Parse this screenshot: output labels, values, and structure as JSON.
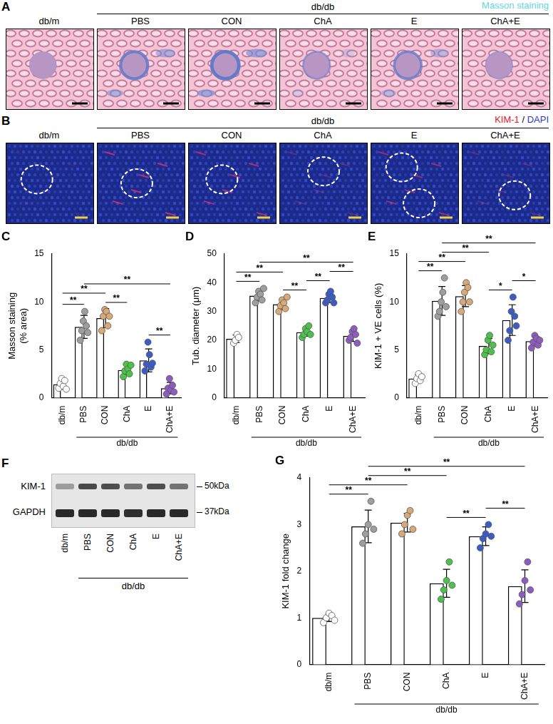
{
  "image_panels": [
    {
      "panel": "A",
      "title": [
        {
          "text": "Masson staining",
          "color": "#5fd6e0"
        }
      ],
      "lanes": [
        "db/m",
        "PBS",
        "CON",
        "ChA",
        "E",
        "ChA+E"
      ],
      "group": {
        "label": "db/db",
        "from": "PBS",
        "to": "ChA+E"
      }
    },
    {
      "panel": "B",
      "title": [
        {
          "text": "KIM-1",
          "color": "#e0202a"
        },
        {
          "text": " / ",
          "color": "#000000"
        },
        {
          "text": "DAPI",
          "color": "#2a3ac8"
        }
      ],
      "lanes": [
        "db/m",
        "PBS",
        "CON",
        "ChA",
        "E",
        "ChA+E"
      ],
      "group": {
        "label": "db/db",
        "from": "PBS",
        "to": "ChA+E"
      }
    }
  ],
  "blot": {
    "panel": "F",
    "lanes": [
      "db/m",
      "PBS",
      "CON",
      "ChA",
      "E",
      "ChA+E"
    ],
    "group": {
      "label": "db/db",
      "from": "PBS",
      "to": "ChA+E"
    },
    "rows": [
      {
        "label": "KIM-1",
        "marker": "50kDa"
      },
      {
        "label": "GAPDH",
        "marker": "37kDa"
      }
    ]
  },
  "chart_data": [
    {
      "type": "bar",
      "panel": "C",
      "y_label": [
        "Masson staining",
        "(% area)"
      ],
      "categories": [
        "db/m",
        "PBS",
        "CON",
        "ChA",
        "E",
        "ChA+E"
      ],
      "values": [
        1.4,
        7.4,
        8.3,
        2.9,
        3.9,
        1.0
      ],
      "errors": [
        0.5,
        1.2,
        1.0,
        0.5,
        1.2,
        0.6
      ],
      "points": [
        [
          1.0,
          1.5,
          2.0,
          1.2,
          1.8,
          0.9
        ],
        [
          6.0,
          7.0,
          8.0,
          9.0,
          7.5,
          6.8
        ],
        [
          7.0,
          8.5,
          9.2,
          9.0,
          7.5,
          8.5
        ],
        [
          2.2,
          2.8,
          3.5,
          3.0,
          2.5,
          3.4
        ],
        [
          2.8,
          3.5,
          5.8,
          4.5,
          3.2,
          3.6
        ],
        [
          0.4,
          1.0,
          2.0,
          0.8,
          1.3,
          0.6
        ]
      ],
      "colors": [
        "#ffffff",
        "#9e9e9e",
        "#d9a877",
        "#4cc24a",
        "#3a5cc4",
        "#8e5cc0"
      ],
      "ylim": [
        0,
        15
      ],
      "yticks": [
        0,
        5,
        10,
        15
      ],
      "group": {
        "label": "db/db",
        "from": "PBS",
        "to": "ChA+E"
      },
      "annotations": [
        {
          "from": "db/m",
          "to": "PBS",
          "label": "**"
        },
        {
          "from": "db/m",
          "to": "CON",
          "label": "**"
        },
        {
          "from": "PBS",
          "to": "ChA+E",
          "label": "**"
        },
        {
          "from": "CON",
          "to": "ChA",
          "label": "**"
        },
        {
          "from": "E",
          "to": "ChA+E",
          "label": "**"
        }
      ]
    },
    {
      "type": "bar",
      "panel": "D",
      "y_label": "Tub. diameter (μm)",
      "categories": [
        "db/m",
        "PBS",
        "CON",
        "ChA",
        "E",
        "ChA+E"
      ],
      "values": [
        20.5,
        35.5,
        32.5,
        22.8,
        34.7,
        21.5
      ],
      "errors": [
        1.3,
        1.8,
        1.8,
        1.4,
        1.6,
        1.9
      ],
      "points": [
        [
          19,
          20,
          22,
          21
        ],
        [
          33,
          35,
          37,
          36,
          34,
          38
        ],
        [
          30,
          32,
          34,
          33,
          31,
          35
        ],
        [
          21,
          22,
          24,
          23,
          25,
          22
        ],
        [
          33,
          34,
          36,
          37,
          35,
          33
        ],
        [
          20,
          21,
          23,
          24,
          22,
          19
        ]
      ],
      "colors": [
        "#ffffff",
        "#9e9e9e",
        "#d9a877",
        "#4cc24a",
        "#3a5cc4",
        "#8e5cc0"
      ],
      "ylim": [
        0,
        50
      ],
      "yticks": [
        0,
        10,
        20,
        30,
        40,
        50
      ],
      "group": {
        "label": "db/db",
        "from": "PBS",
        "to": "ChA+E"
      },
      "annotations": [
        {
          "from": "db/m",
          "to": "PBS",
          "label": "**"
        },
        {
          "from": "db/m",
          "to": "CON",
          "label": "**"
        },
        {
          "from": "PBS",
          "to": "ChA+E",
          "label": "**"
        },
        {
          "from": "CON",
          "to": "ChA",
          "label": "**"
        },
        {
          "from": "ChA",
          "to": "E",
          "label": "**"
        },
        {
          "from": "E",
          "to": "ChA+E",
          "label": "**"
        }
      ]
    },
    {
      "type": "bar",
      "panel": "E",
      "y_label": "KIM-1 + VE cells (%)",
      "categories": [
        "db/m",
        "PBS",
        "CON",
        "ChA",
        "E",
        "ChA+E"
      ],
      "values": [
        2.0,
        10.1,
        10.6,
        5.4,
        8.1,
        5.9
      ],
      "errors": [
        0.4,
        1.5,
        1.1,
        0.8,
        1.6,
        0.5
      ],
      "points": [
        [
          1.5,
          2.0,
          2.5,
          1.8,
          2.2
        ],
        [
          8.5,
          9.0,
          10.0,
          11.0,
          12.5,
          9.5
        ],
        [
          9.0,
          10.0,
          11.0,
          12.0,
          11.5,
          10.0
        ],
        [
          4.5,
          5.0,
          6.0,
          6.5,
          4.8,
          5.5
        ],
        [
          6.0,
          7.0,
          9.0,
          10.5,
          8.5,
          7.5
        ],
        [
          5.2,
          5.8,
          6.5,
          6.2,
          5.5,
          6.0
        ]
      ],
      "colors": [
        "#ffffff",
        "#9e9e9e",
        "#d9a877",
        "#4cc24a",
        "#3a5cc4",
        "#8e5cc0"
      ],
      "ylim": [
        0,
        15
      ],
      "yticks": [
        0,
        5,
        10,
        15
      ],
      "group": {
        "label": "db/db",
        "from": "PBS",
        "to": "ChA+E"
      },
      "annotations": [
        {
          "from": "db/m",
          "to": "PBS",
          "label": "**"
        },
        {
          "from": "db/m",
          "to": "CON",
          "label": "**"
        },
        {
          "from": "PBS",
          "to": "ChA",
          "label": "**"
        },
        {
          "from": "PBS",
          "to": "ChA+E",
          "label": "**"
        },
        {
          "from": "ChA",
          "to": "E",
          "label": "*"
        },
        {
          "from": "E",
          "to": "ChA+E",
          "label": "*"
        }
      ]
    },
    {
      "type": "bar",
      "panel": "G",
      "y_label": "KIM-1 fold change",
      "categories": [
        "db/m",
        "PBS",
        "CON",
        "ChA",
        "E",
        "ChA+E"
      ],
      "values": [
        1.0,
        2.96,
        3.04,
        1.74,
        2.75,
        1.68
      ],
      "errors": [
        0.08,
        0.35,
        0.2,
        0.3,
        0.2,
        0.35
      ],
      "points": [
        [
          0.9,
          1.0,
          1.1,
          1.05,
          0.95
        ],
        [
          2.6,
          2.8,
          3.0,
          3.5,
          2.9
        ],
        [
          2.8,
          3.0,
          3.2,
          3.3,
          2.9
        ],
        [
          1.4,
          1.6,
          1.8,
          2.2,
          1.7
        ],
        [
          2.5,
          2.7,
          2.8,
          3.0,
          2.75
        ],
        [
          1.3,
          1.5,
          1.8,
          2.2,
          1.6
        ]
      ],
      "colors": [
        "#ffffff",
        "#9e9e9e",
        "#d9a877",
        "#4cc24a",
        "#3a5cc4",
        "#8e5cc0"
      ],
      "ylim": [
        0,
        4
      ],
      "yticks": [
        0,
        1,
        2,
        3,
        4
      ],
      "group": {
        "label": "db/db",
        "from": "PBS",
        "to": "ChA+E"
      },
      "annotations": [
        {
          "from": "db/m",
          "to": "PBS",
          "label": "**"
        },
        {
          "from": "db/m",
          "to": "CON",
          "label": "**"
        },
        {
          "from": "PBS",
          "to": "ChA",
          "label": "**"
        },
        {
          "from": "PBS",
          "to": "ChA+E",
          "label": "**"
        },
        {
          "from": "ChA",
          "to": "E",
          "label": "**"
        },
        {
          "from": "E",
          "to": "ChA+E",
          "label": "**"
        }
      ]
    }
  ]
}
